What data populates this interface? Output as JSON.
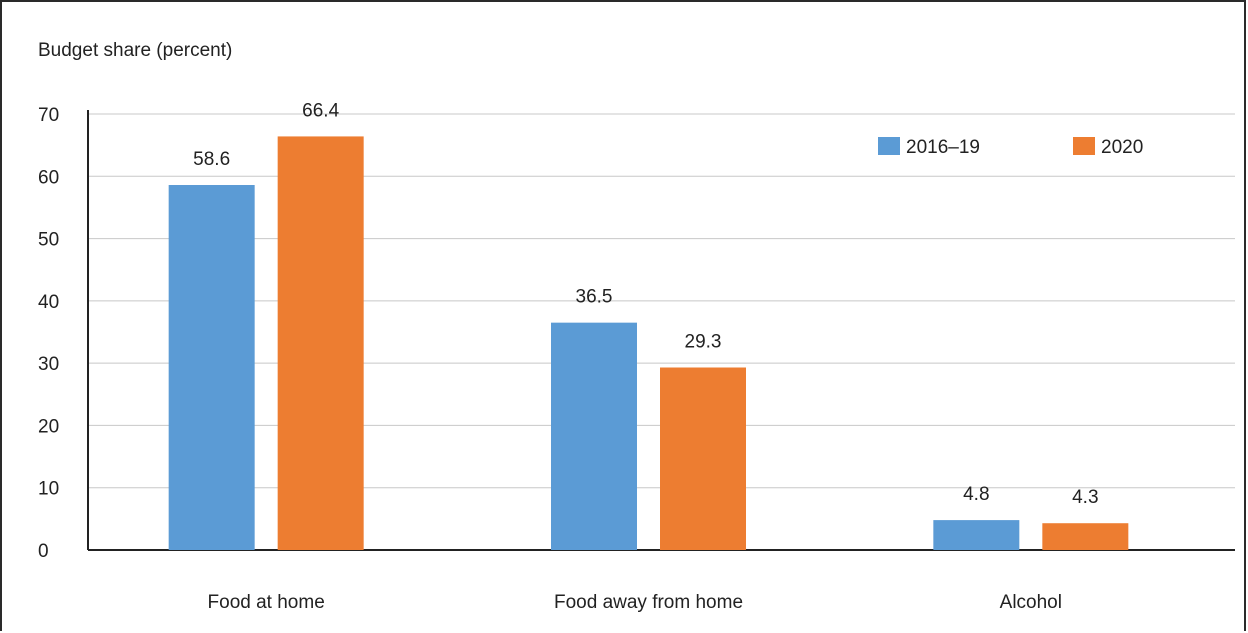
{
  "chart_data": {
    "type": "bar",
    "title": "",
    "ylabel": "Budget share (percent)",
    "xlabel": "",
    "categories": [
      "Food at home",
      "Food away from home",
      "Alcohol"
    ],
    "series": [
      {
        "name": "2016–19",
        "color": "#5b9bd5",
        "values": [
          58.6,
          36.5,
          4.8
        ],
        "labels": [
          "58.6",
          "36.5",
          "4.8"
        ]
      },
      {
        "name": "2020",
        "color": "#ed7d31",
        "values": [
          66.4,
          29.3,
          4.3
        ],
        "labels": [
          "66.4",
          "29.3",
          "4.3"
        ]
      }
    ],
    "ylim": [
      0,
      70
    ],
    "yticks": [
      "0",
      "10",
      "20",
      "30",
      "40",
      "50",
      "60",
      "70"
    ],
    "grid": true,
    "legend_position": "top-right"
  }
}
